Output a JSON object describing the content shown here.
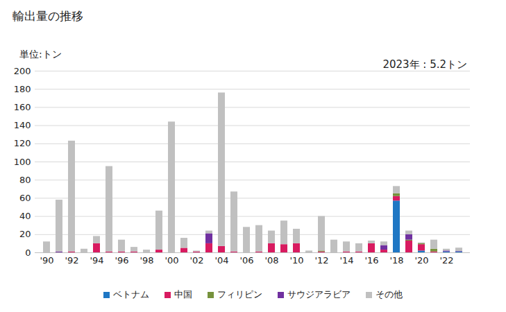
{
  "chart_data": {
    "type": "bar",
    "title": "輸出量の推移",
    "y_label": "単位:トン",
    "annotation": "2023年 : 5.2トン",
    "stacked": true,
    "grid": true,
    "legend": "bottom",
    "categories": [
      "'90",
      null,
      "'92",
      null,
      "'94",
      null,
      "'96",
      null,
      "'98",
      null,
      "'00",
      null,
      "'02",
      null,
      "'04",
      null,
      "'06",
      null,
      "'08",
      null,
      "'10",
      null,
      "'12",
      null,
      "'14",
      null,
      "'16",
      null,
      "'18",
      null,
      "'20",
      null,
      "'22",
      null
    ],
    "ylim": [
      0,
      200
    ],
    "yticks": [
      0,
      20,
      40,
      60,
      80,
      100,
      120,
      140,
      160,
      180,
      200
    ],
    "series": [
      {
        "name": "ベトナム",
        "color": "#1f77c4",
        "values": [
          0,
          0,
          0,
          0,
          0,
          0,
          0,
          0,
          0,
          0,
          0,
          0,
          0,
          0,
          0,
          0,
          0,
          0,
          0,
          0,
          0,
          0,
          0,
          0,
          0,
          0,
          0,
          0,
          57,
          0,
          2,
          0,
          1,
          1
        ]
      },
      {
        "name": "中国",
        "color": "#d81b60",
        "values": [
          0,
          0,
          1,
          0,
          10,
          1,
          1,
          1,
          0,
          3,
          0,
          5,
          1,
          10,
          7,
          1,
          0,
          1,
          10,
          9,
          10,
          0,
          1,
          0,
          1,
          1,
          10,
          3,
          5,
          13,
          7,
          1,
          0,
          0
        ]
      },
      {
        "name": "フィリピン",
        "color": "#76923c",
        "values": [
          0,
          0,
          0,
          0,
          0,
          0,
          0,
          0,
          0,
          0,
          0,
          0,
          0,
          0,
          0,
          0,
          0,
          0,
          0,
          0,
          0,
          0,
          1,
          0,
          0,
          0,
          0,
          0,
          3,
          1,
          1,
          3,
          0,
          0
        ]
      },
      {
        "name": "サウジアラビア",
        "color": "#7030a0",
        "values": [
          0,
          1,
          0,
          0,
          0,
          0,
          0,
          0,
          0,
          0,
          0,
          0,
          0,
          11,
          0,
          0,
          0,
          0,
          0,
          0,
          0,
          0,
          0,
          0,
          0,
          0,
          0,
          5,
          0,
          6,
          0,
          0,
          1,
          0.5
        ]
      },
      {
        "name": "その他",
        "color": "#c0c0c0",
        "values": [
          12,
          57,
          122,
          4,
          8,
          94,
          13,
          5,
          3,
          43,
          144,
          11,
          1,
          3,
          169,
          66,
          28,
          29,
          14,
          26,
          16,
          2,
          38,
          14,
          11,
          9,
          3,
          4,
          8,
          4,
          1,
          10,
          2,
          3.7
        ]
      }
    ]
  }
}
